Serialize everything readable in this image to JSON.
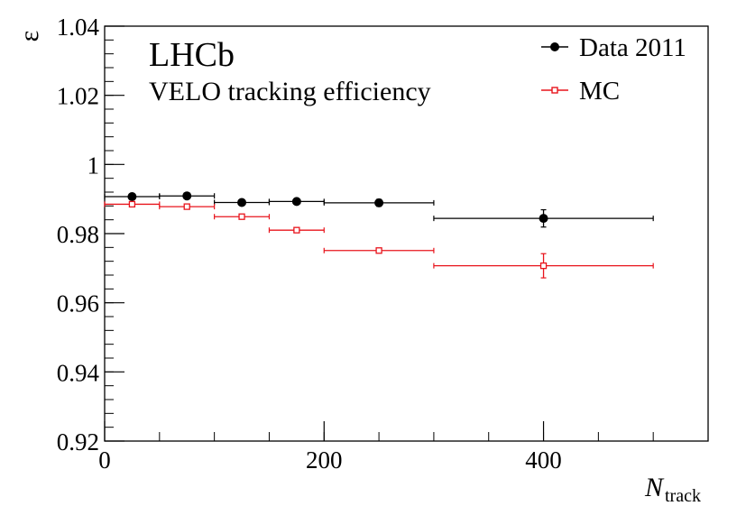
{
  "chart_data": {
    "type": "scatter",
    "title": "LHCb",
    "subtitle": "VELO tracking efficiency",
    "xlabel": {
      "main": "N",
      "sub": "track"
    },
    "ylabel": "ε",
    "xlim": [
      0,
      550
    ],
    "ylim": [
      0.92,
      1.04
    ],
    "xticks": [
      {
        "value": 0,
        "label": "0"
      },
      {
        "value": 200,
        "label": "200"
      },
      {
        "value": 400,
        "label": "400"
      }
    ],
    "xminor_step": 50,
    "yticks": [
      {
        "value": 0.92,
        "label": "0.92"
      },
      {
        "value": 0.94,
        "label": "0.94"
      },
      {
        "value": 0.96,
        "label": "0.96"
      },
      {
        "value": 0.98,
        "label": "0.98"
      },
      {
        "value": 1.0,
        "label": "1"
      },
      {
        "value": 1.02,
        "label": "1.02"
      },
      {
        "value": 1.04,
        "label": "1.04"
      }
    ],
    "yminor_step": 0.004,
    "legend_position": "top-right",
    "series": [
      {
        "name": "Data 2011",
        "color": "#000000",
        "marker": "filled-circle",
        "points": [
          {
            "x": 25,
            "xlo": 0,
            "xhi": 50,
            "y": 0.9907,
            "yerr": 0.0004
          },
          {
            "x": 75,
            "xlo": 50,
            "xhi": 100,
            "y": 0.9909,
            "yerr": 0.0004
          },
          {
            "x": 125,
            "xlo": 100,
            "xhi": 150,
            "y": 0.989,
            "yerr": 0.0004
          },
          {
            "x": 175,
            "xlo": 150,
            "xhi": 200,
            "y": 0.9893,
            "yerr": 0.0005
          },
          {
            "x": 250,
            "xlo": 200,
            "xhi": 300,
            "y": 0.9889,
            "yerr": 0.001
          },
          {
            "x": 400,
            "xlo": 300,
            "xhi": 500,
            "y": 0.9844,
            "yerr": 0.0025
          }
        ]
      },
      {
        "name": "MC",
        "color": "#e8141c",
        "marker": "open-square",
        "points": [
          {
            "x": 25,
            "xlo": 0,
            "xhi": 50,
            "y": 0.9885,
            "yerr": 0.0003
          },
          {
            "x": 75,
            "xlo": 50,
            "xhi": 100,
            "y": 0.9878,
            "yerr": 0.0003
          },
          {
            "x": 125,
            "xlo": 100,
            "xhi": 150,
            "y": 0.9849,
            "yerr": 0.0003
          },
          {
            "x": 175,
            "xlo": 150,
            "xhi": 200,
            "y": 0.981,
            "yerr": 0.0004
          },
          {
            "x": 250,
            "xlo": 200,
            "xhi": 300,
            "y": 0.9751,
            "yerr": 0.0007
          },
          {
            "x": 400,
            "xlo": 300,
            "xhi": 500,
            "y": 0.9707,
            "yerr": 0.0035
          }
        ]
      }
    ]
  }
}
